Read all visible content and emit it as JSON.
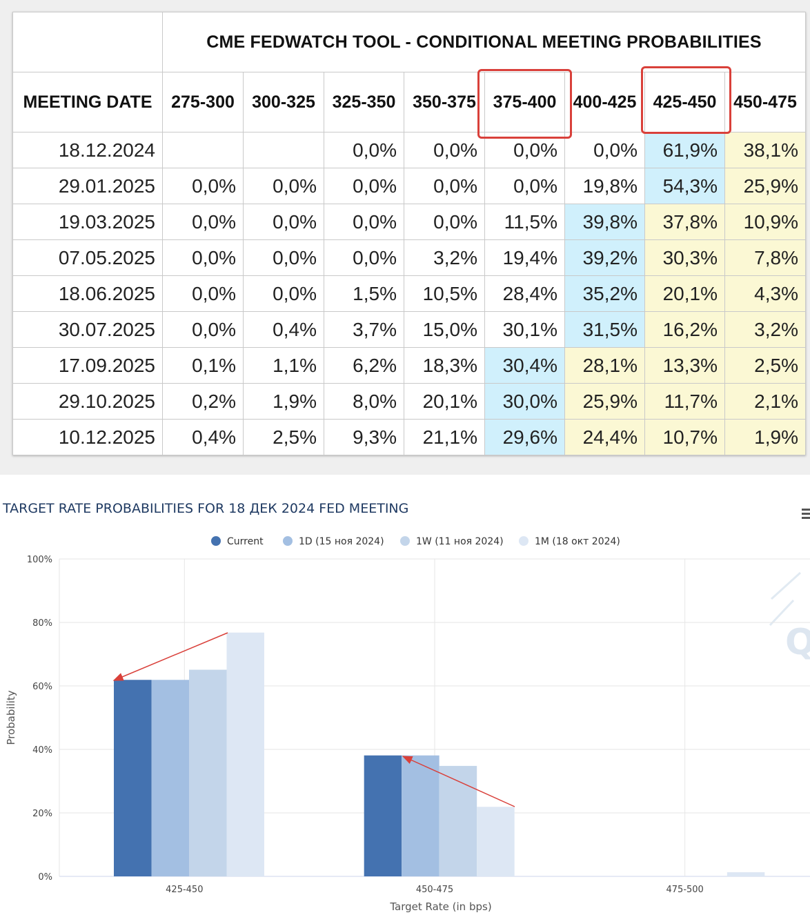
{
  "table": {
    "title": "CME FEDWATCH TOOL - CONDITIONAL MEETING PROBABILITIES",
    "meeting_date_header": "MEETING DATE",
    "columns": [
      "275-300",
      "300-325",
      "325-350",
      "350-375",
      "375-400",
      "400-425",
      "425-450",
      "450-475"
    ],
    "rows": [
      {
        "date": "18.12.2024",
        "cells": [
          "",
          "",
          "0,0%",
          "0,0%",
          "0,0%",
          "0,0%",
          "61,9%",
          "38,1%"
        ]
      },
      {
        "date": "29.01.2025",
        "cells": [
          "0,0%",
          "0,0%",
          "0,0%",
          "0,0%",
          "0,0%",
          "19,8%",
          "54,3%",
          "25,9%"
        ]
      },
      {
        "date": "19.03.2025",
        "cells": [
          "0,0%",
          "0,0%",
          "0,0%",
          "0,0%",
          "11,5%",
          "39,8%",
          "37,8%",
          "10,9%"
        ]
      },
      {
        "date": "07.05.2025",
        "cells": [
          "0,0%",
          "0,0%",
          "0,0%",
          "3,2%",
          "19,4%",
          "39,2%",
          "30,3%",
          "7,8%"
        ]
      },
      {
        "date": "18.06.2025",
        "cells": [
          "0,0%",
          "0,0%",
          "1,5%",
          "10,5%",
          "28,4%",
          "35,2%",
          "20,1%",
          "4,3%"
        ]
      },
      {
        "date": "30.07.2025",
        "cells": [
          "0,0%",
          "0,4%",
          "3,7%",
          "15,0%",
          "30,1%",
          "31,5%",
          "16,2%",
          "3,2%"
        ]
      },
      {
        "date": "17.09.2025",
        "cells": [
          "0,1%",
          "1,1%",
          "6,2%",
          "18,3%",
          "30,4%",
          "28,1%",
          "13,3%",
          "2,5%"
        ]
      },
      {
        "date": "29.10.2025",
        "cells": [
          "0,2%",
          "1,9%",
          "8,0%",
          "20,1%",
          "30,0%",
          "25,9%",
          "11,7%",
          "2,1%"
        ]
      },
      {
        "date": "10.12.2025",
        "cells": [
          "0,4%",
          "2,5%",
          "9,3%",
          "21,1%",
          "29,6%",
          "24,4%",
          "10,7%",
          "1,9%"
        ]
      }
    ],
    "highlights": [
      {
        "row": 0,
        "blue": 6,
        "yellow": [
          7
        ]
      },
      {
        "row": 1,
        "blue": 6,
        "yellow": [
          7
        ]
      },
      {
        "row": 2,
        "blue": 5,
        "yellow": [
          6,
          7
        ]
      },
      {
        "row": 3,
        "blue": 5,
        "yellow": [
          6,
          7
        ]
      },
      {
        "row": 4,
        "blue": 5,
        "yellow": [
          6,
          7
        ]
      },
      {
        "row": 5,
        "blue": 5,
        "yellow": [
          6,
          7
        ]
      },
      {
        "row": 6,
        "blue": 4,
        "yellow": [
          5,
          6,
          7
        ]
      },
      {
        "row": 7,
        "blue": 4,
        "yellow": [
          5,
          6,
          7
        ]
      },
      {
        "row": 8,
        "blue": 4,
        "yellow": [
          5,
          6,
          7
        ]
      }
    ],
    "highlight_colors": {
      "blue": "#d0f0fc",
      "yellow": "#fbf8d4",
      "box": "#d9403a"
    },
    "boxed_columns": [
      "375-400",
      "425-450"
    ]
  },
  "chart_data": {
    "type": "bar",
    "title": "TARGET RATE PROBABILITIES FOR 18 ДЕК 2024 FED MEETING",
    "xlabel": "Target Rate (in bps)",
    "ylabel": "Probability",
    "ylim": [
      0,
      100
    ],
    "yticks": [
      "0%",
      "20%",
      "40%",
      "60%",
      "80%",
      "100%"
    ],
    "categories": [
      "425-450",
      "450-475",
      "475-500"
    ],
    "series": [
      {
        "name": "Current",
        "color": "#4472b0",
        "values": [
          61.9,
          38.1,
          0
        ]
      },
      {
        "name": "1D (15 ноя 2024)",
        "color": "#a3bfe2",
        "values": [
          61.9,
          38.1,
          0
        ]
      },
      {
        "name": "1W (11 ноя 2024)",
        "color": "#c3d5ea",
        "values": [
          65.1,
          34.8,
          0
        ]
      },
      {
        "name": "1M (18 окт 2024)",
        "color": "#dde7f4",
        "values": [
          76.8,
          21.9,
          1.3
        ]
      }
    ],
    "legend_position": "top-center",
    "grid": true,
    "annotations": "red arrows from 1M bars pointing to Current bars"
  }
}
